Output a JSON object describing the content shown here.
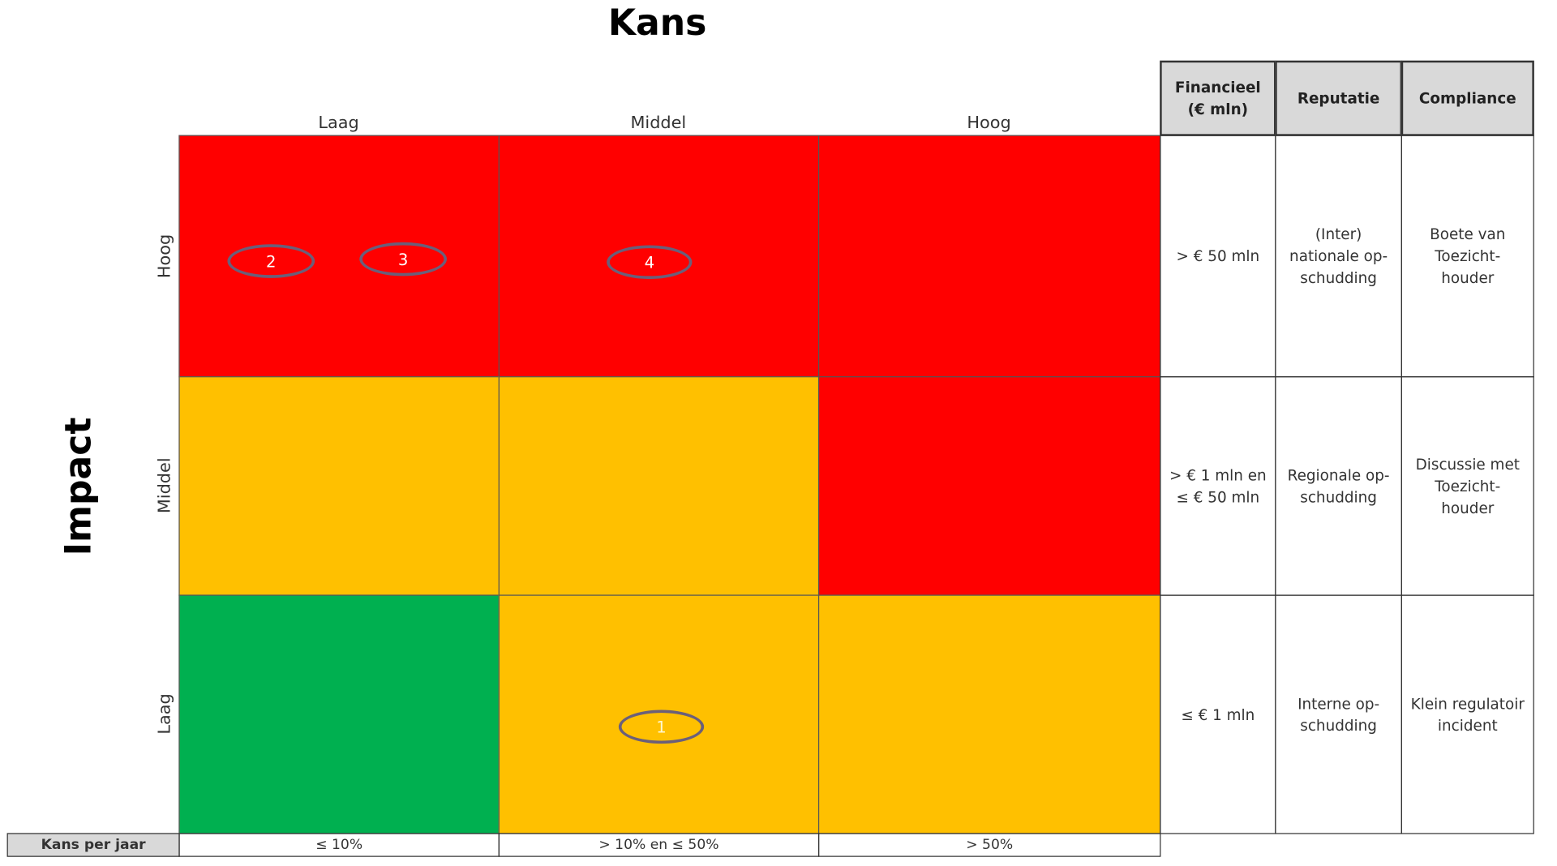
{
  "title": "Kans",
  "y_title": "Impact",
  "columns": [
    "Laag",
    "Middel",
    "Hoog"
  ],
  "rows": [
    "Hoog",
    "Middel",
    "Laag"
  ],
  "markers": [
    "2",
    "3",
    "4",
    "1"
  ],
  "table": {
    "header": [
      "Financieel\n(€ mln)",
      "Reputatie",
      "Compliance"
    ],
    "rows": [
      [
        "> € 50 mln",
        "(Inter)\nnationale op-\nschudding",
        "Boete van\nToezicht-\nhouder"
      ],
      [
        "> € 1 mln en\n≤ € 50 mln",
        "Regionale op-\nschudding",
        "Discussie met\nToezicht-\nhouder"
      ],
      [
        "≤ € 1 mln",
        "Interne op-\nschudding",
        "Klein regulatoir\nincident"
      ]
    ]
  },
  "footer": {
    "label": "Kans per jaar",
    "values": [
      "≤ 10%",
      "> 10% en ≤ 50%",
      "> 50%"
    ]
  }
}
